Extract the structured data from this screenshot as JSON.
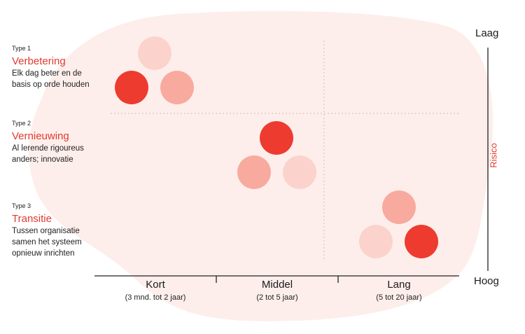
{
  "types": [
    {
      "label": "Type 1",
      "title": "Verbetering",
      "desc_lines": [
        "Elk dag beter en de",
        "basis op orde houden"
      ]
    },
    {
      "label": "Type 2",
      "title": "Vernieuwing",
      "desc_lines": [
        "Al lerende rigoureus",
        "anders; innovatie"
      ]
    },
    {
      "label": "Type 3",
      "title": "Transitie",
      "desc_lines": [
        "Tussen organisatie",
        "samen het systeem",
        "opnieuw inrichten"
      ]
    }
  ],
  "x_axis": [
    {
      "name": "Kort",
      "sub": "(3 mnd. tot 2 jaar)"
    },
    {
      "name": "Middel",
      "sub": "(2 tot 5 jaar)"
    },
    {
      "name": "Lang",
      "sub": "(5 tot 20 jaar)"
    }
  ],
  "y_axis": {
    "top": "Laag",
    "bottom": "Hoog",
    "title": "Risico"
  },
  "colors": {
    "accent": "#e23a2e",
    "circle_dark": "#ee3b2f",
    "circle_mid": "#f8aa9f",
    "circle_light": "#fbd3cc",
    "blob": "#fdeeeb",
    "line": "#222222"
  }
}
